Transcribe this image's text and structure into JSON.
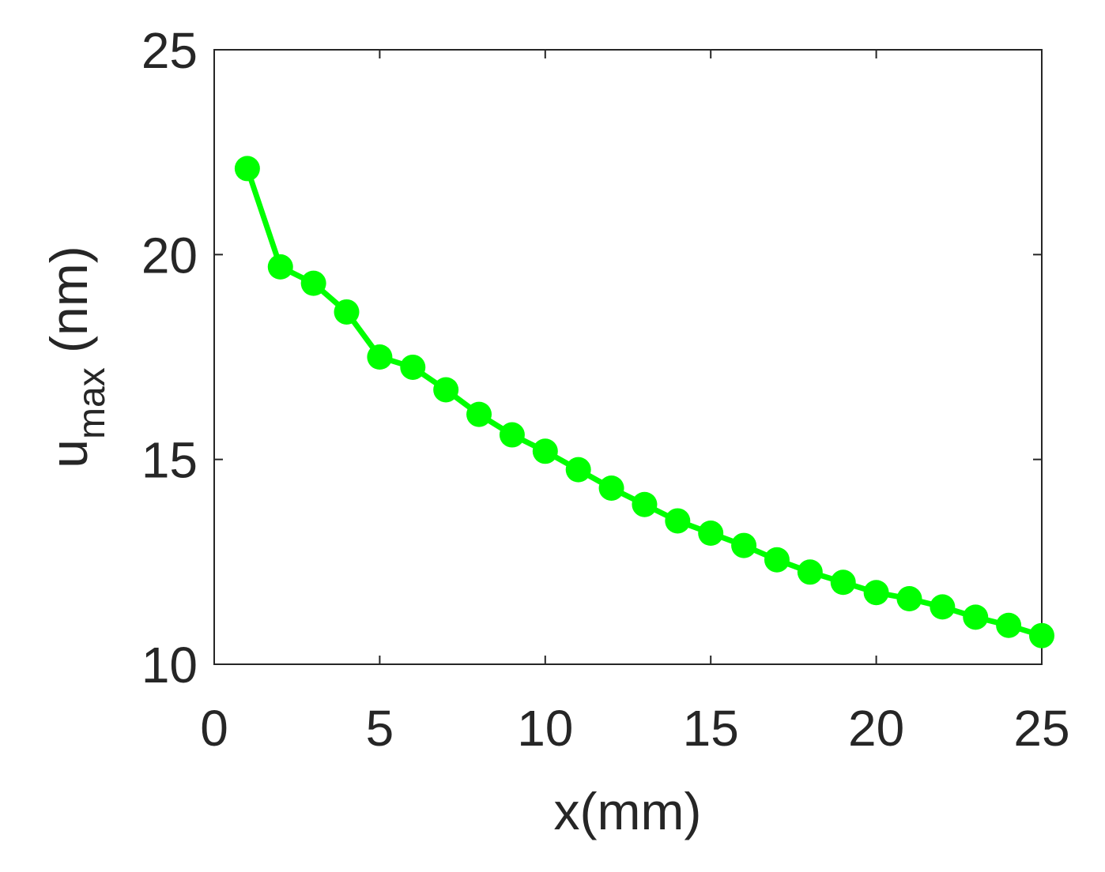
{
  "chart_data": {
    "type": "line",
    "xlabel": "x(mm)",
    "ylabel_main": "u",
    "ylabel_sub": "max",
    "ylabel_unit": " (nm)",
    "xlim": [
      0,
      25
    ],
    "ylim": [
      10,
      25
    ],
    "xticks": [
      0,
      5,
      10,
      15,
      20,
      25
    ],
    "yticks": [
      10,
      15,
      20,
      25
    ],
    "grid": false,
    "line_color": "#00ff00",
    "axis_color": "#262626",
    "series": [
      {
        "x": [
          1,
          2,
          3,
          4,
          5,
          6,
          7,
          8,
          9,
          10,
          11,
          12,
          13,
          14,
          15,
          16,
          17,
          18,
          19,
          20,
          21,
          22,
          23,
          24,
          25
        ],
        "y": [
          22.1,
          19.7,
          19.3,
          18.6,
          17.5,
          17.25,
          16.7,
          16.1,
          15.6,
          15.2,
          14.75,
          14.3,
          13.9,
          13.5,
          13.2,
          12.9,
          12.55,
          12.25,
          12.0,
          11.75,
          11.6,
          11.4,
          11.15,
          10.95,
          10.7
        ]
      }
    ]
  }
}
